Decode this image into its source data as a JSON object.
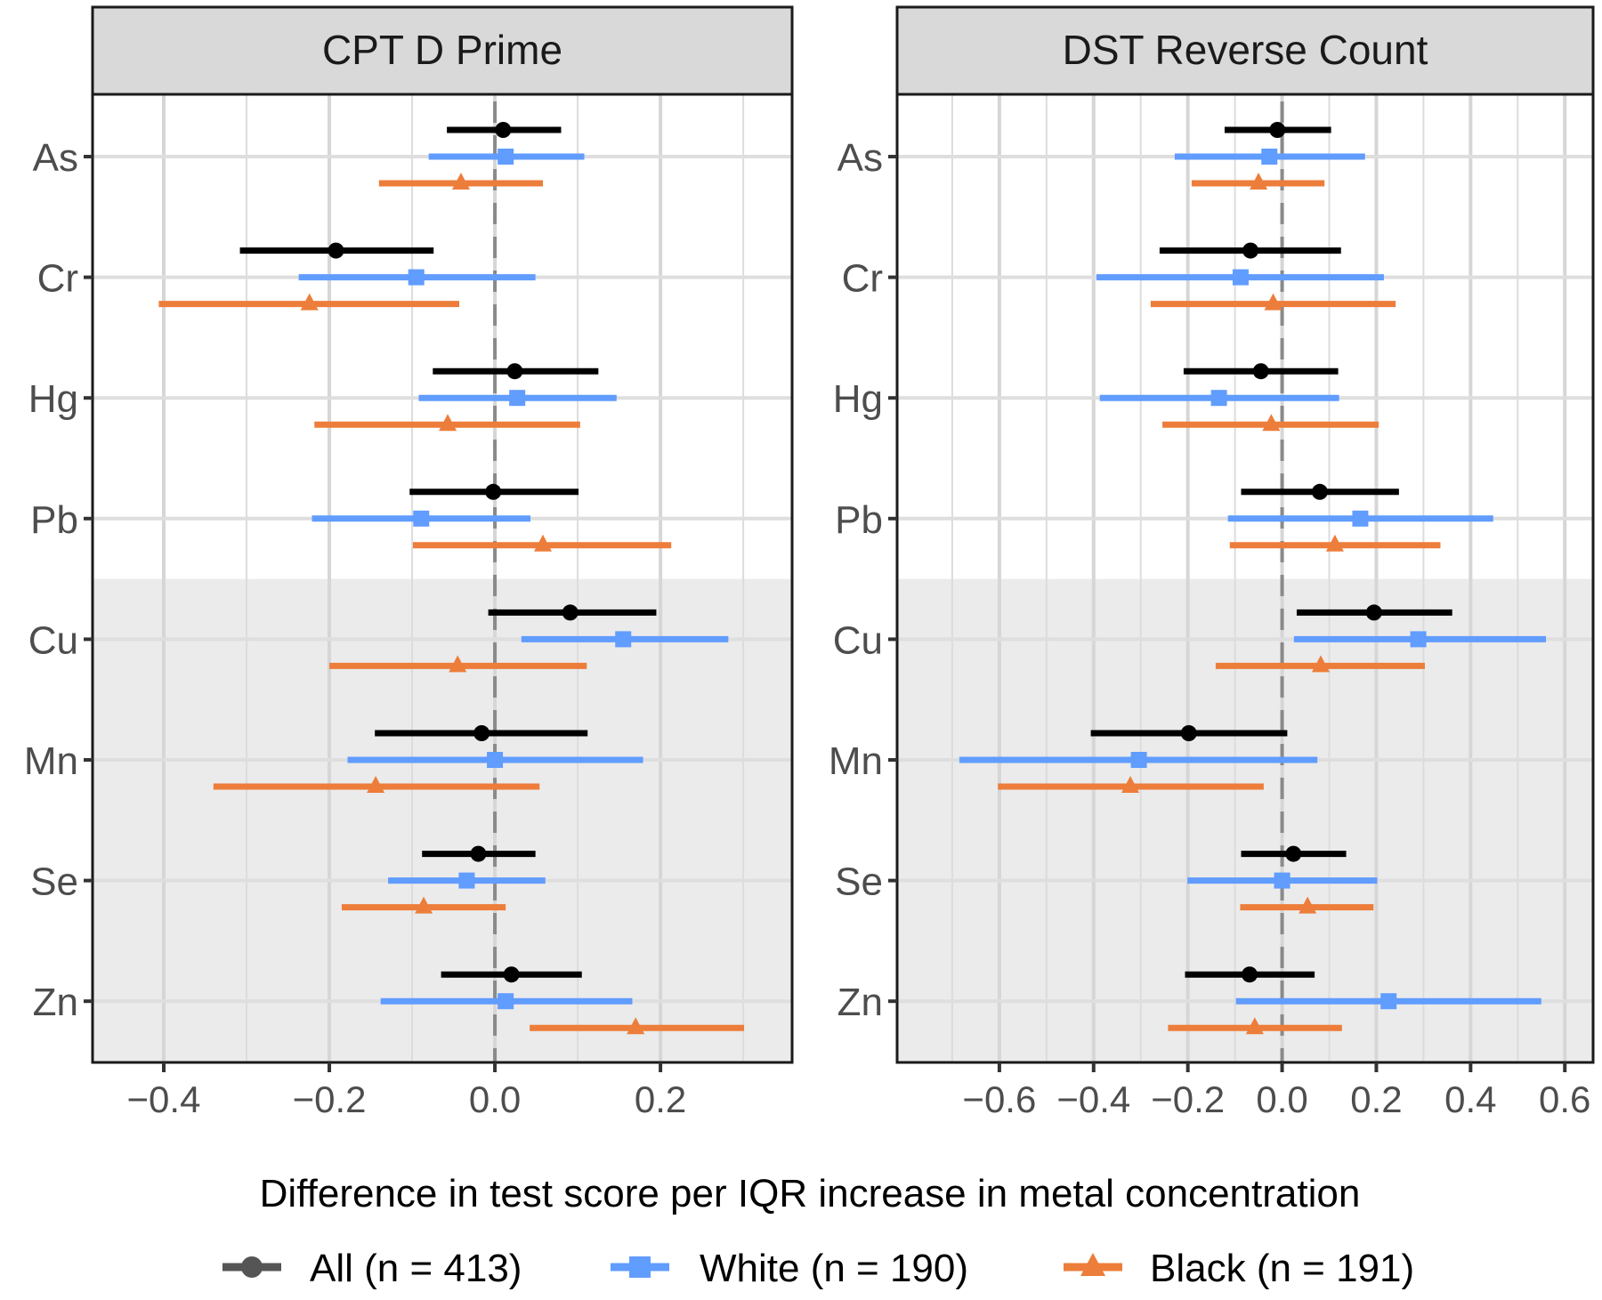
{
  "chart_data": {
    "type": "forest-plot",
    "xlabel": "Difference in test score per IQR increase in metal concentration",
    "ylabel": "",
    "categories": [
      "As",
      "Cr",
      "Hg",
      "Pb",
      "Cu",
      "Mn",
      "Se",
      "Zn"
    ],
    "shaded_categories": [
      "Cu",
      "Mn",
      "Se",
      "Zn"
    ],
    "reference_line_x": 0,
    "grid": true,
    "legend_position": "bottom",
    "legend": [
      {
        "key": "all",
        "label": "All (n = 413)",
        "color": "#000000",
        "shape": "circle"
      },
      {
        "key": "white",
        "label": "White (n = 190)",
        "color": "#619CFF",
        "shape": "square"
      },
      {
        "key": "black",
        "label": "Black (n = 191)",
        "color": "#ED7D3A",
        "shape": "triangle"
      }
    ],
    "panels": [
      {
        "title": "CPT D Prime",
        "xlim": [
          -0.486,
          0.359
        ],
        "xticks": [
          -0.4,
          -0.2,
          0.0,
          0.2
        ],
        "xtick_labels": [
          "−0.4",
          "−0.2",
          "0.0",
          "0.2"
        ],
        "minor_gridlines": [
          -0.3,
          -0.1,
          0.1,
          0.3
        ],
        "series": {
          "all": {
            "estimate": [
              0.01,
              -0.192,
              0.024,
              -0.002,
              0.091,
              -0.016,
              -0.02,
              0.02
            ],
            "lower": [
              -0.058,
              -0.308,
              -0.075,
              -0.103,
              -0.008,
              -0.145,
              -0.088,
              -0.065
            ],
            "upper": [
              0.08,
              -0.074,
              0.125,
              0.101,
              0.195,
              0.112,
              0.049,
              0.105
            ]
          },
          "white": {
            "estimate": [
              0.013,
              -0.095,
              0.027,
              -0.089,
              0.155,
              0.0,
              -0.034,
              0.013
            ],
            "lower": [
              -0.08,
              -0.237,
              -0.092,
              -0.221,
              0.032,
              -0.178,
              -0.129,
              -0.138
            ],
            "upper": [
              0.108,
              0.049,
              0.147,
              0.043,
              0.282,
              0.179,
              0.061,
              0.166
            ]
          },
          "black": {
            "estimate": [
              -0.041,
              -0.224,
              -0.057,
              0.058,
              -0.045,
              -0.144,
              -0.086,
              0.17
            ],
            "lower": [
              -0.14,
              -0.406,
              -0.218,
              -0.099,
              -0.2,
              -0.34,
              -0.185,
              0.042
            ],
            "upper": [
              0.058,
              -0.043,
              0.103,
              0.213,
              0.111,
              0.054,
              0.013,
              0.301
            ]
          }
        }
      },
      {
        "title": "DST Reverse Count",
        "xlim": [
          -0.817,
          0.66
        ],
        "xticks": [
          -0.6,
          -0.4,
          -0.2,
          0.0,
          0.2,
          0.4,
          0.6
        ],
        "xtick_labels": [
          "−0.6",
          "−0.4",
          "−0.2",
          "0.0",
          "0.2",
          "0.4",
          "0.6"
        ],
        "minor_gridlines": [
          -0.7,
          -0.5,
          -0.3,
          -0.1,
          0.1,
          0.3,
          0.5
        ],
        "series": {
          "all": {
            "estimate": [
              -0.01,
              -0.067,
              -0.045,
              0.08,
              0.195,
              -0.198,
              0.024,
              -0.069
            ],
            "lower": [
              -0.122,
              -0.26,
              -0.209,
              -0.087,
              0.031,
              -0.406,
              -0.087,
              -0.206
            ],
            "upper": [
              0.104,
              0.125,
              0.119,
              0.248,
              0.361,
              0.011,
              0.136,
              0.069
            ]
          },
          "white": {
            "estimate": [
              -0.027,
              -0.088,
              -0.134,
              0.166,
              0.289,
              -0.304,
              0.0,
              0.226
            ],
            "lower": [
              -0.228,
              -0.394,
              -0.387,
              -0.115,
              0.025,
              -0.685,
              -0.201,
              -0.098
            ],
            "upper": [
              0.176,
              0.216,
              0.121,
              0.448,
              0.56,
              0.075,
              0.202,
              0.55
            ]
          },
          "black": {
            "estimate": [
              -0.05,
              -0.019,
              -0.023,
              0.112,
              0.082,
              -0.322,
              0.054,
              -0.058
            ],
            "lower": [
              -0.192,
              -0.279,
              -0.254,
              -0.111,
              -0.141,
              -0.603,
              -0.089,
              -0.242
            ],
            "upper": [
              0.09,
              0.241,
              0.205,
              0.336,
              0.303,
              -0.039,
              0.194,
              0.127
            ]
          }
        }
      }
    ]
  }
}
